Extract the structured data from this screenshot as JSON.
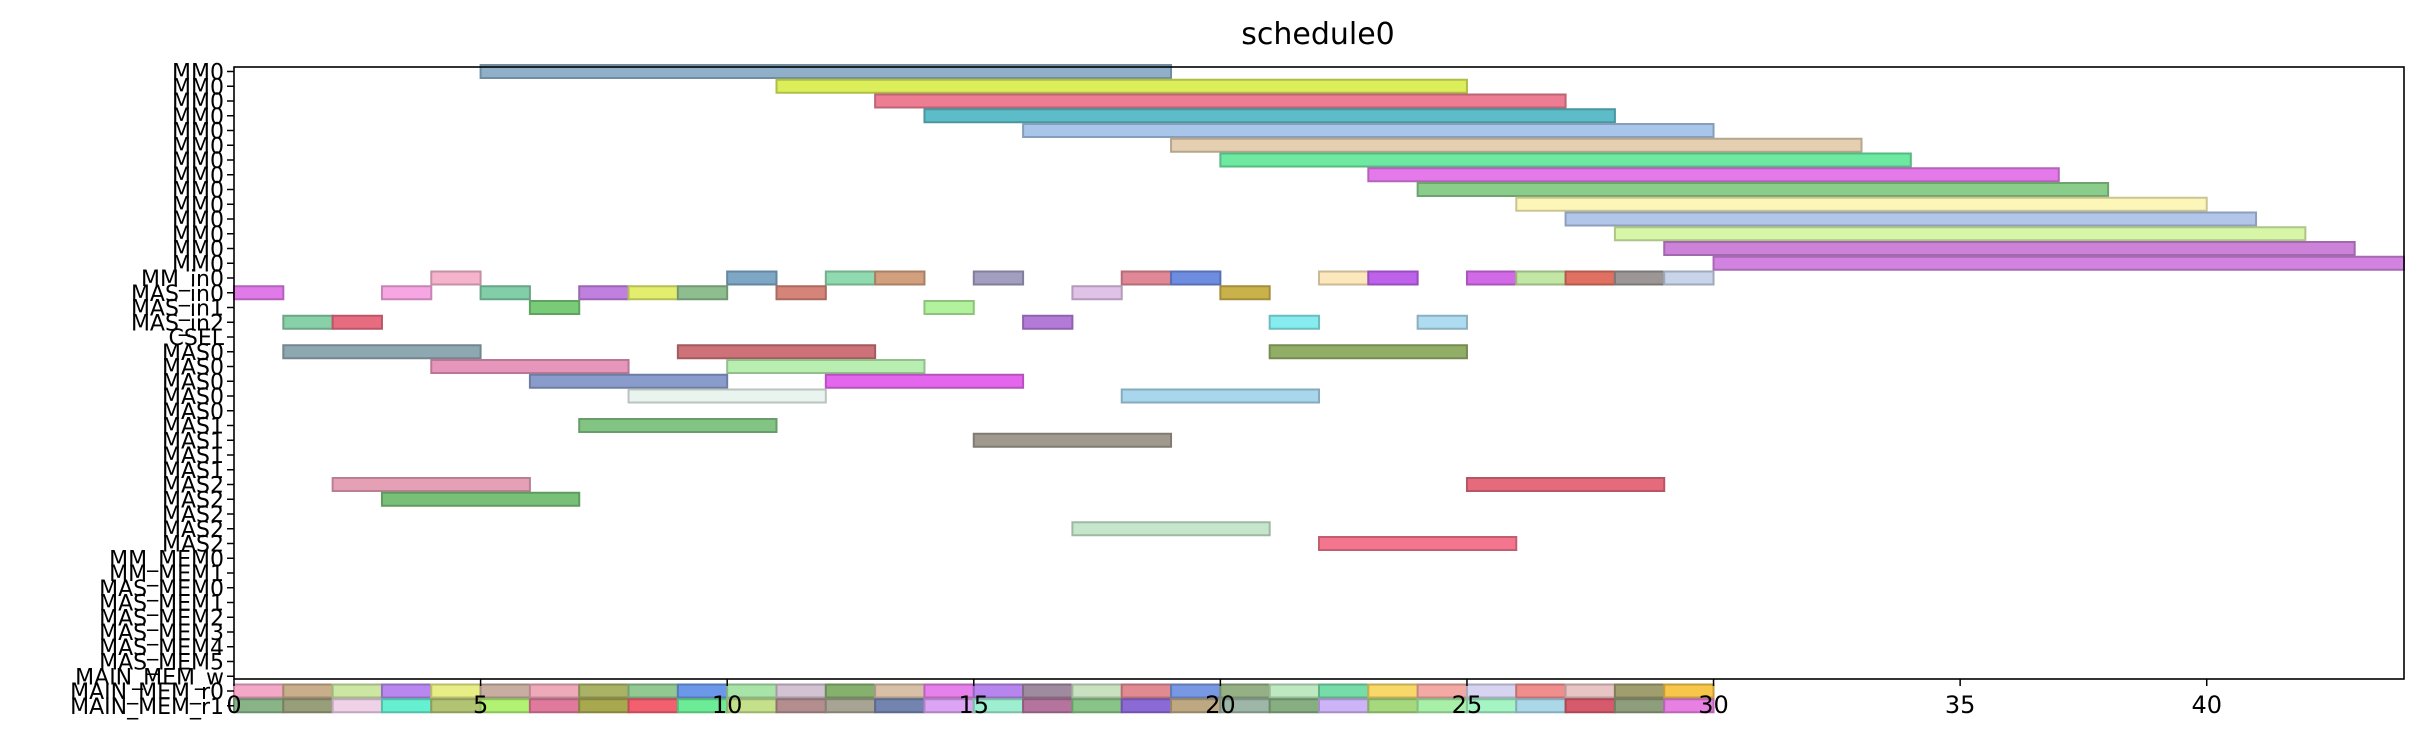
{
  "chart_data": {
    "type": "gantt",
    "title": "schedule0",
    "xlim": [
      0,
      44
    ],
    "x_ticks": [
      0,
      5,
      10,
      15,
      20,
      25,
      30,
      35,
      40
    ],
    "grid": false,
    "rows": [
      "MM0",
      "MM0",
      "MM0",
      "MM0",
      "MM0",
      "MM0",
      "MM0",
      "MM0",
      "MM0",
      "MM0",
      "MM0",
      "MM0",
      "MM0",
      "MM0",
      "MM_in0",
      "MAS_in0",
      "MAS_in1",
      "MAS_in2",
      "CSEL",
      "MAS0",
      "MAS0",
      "MAS0",
      "MAS0",
      "MAS0",
      "MAS1",
      "MAS1",
      "MAS1",
      "MAS1",
      "MAS2",
      "MAS2",
      "MAS2",
      "MAS2",
      "MAS2",
      "MM_MEM0",
      "MM_MEM1",
      "MAS_MEM0",
      "MAS_MEM1",
      "MAS_MEM2",
      "MAS_MEM3",
      "MAS_MEM4",
      "MAS_MEM5",
      "MAIN_MEM_w",
      "MAIN_MEM_r0",
      "MAIN_MEM_r1"
    ],
    "tasks": [
      {
        "row": 0,
        "start": 5,
        "end": 19,
        "color": "#8fb0c8"
      },
      {
        "row": 1,
        "start": 11,
        "end": 25,
        "color": "#dcee5a"
      },
      {
        "row": 2,
        "start": 13,
        "end": 27,
        "color": "#ec7d92"
      },
      {
        "row": 3,
        "start": 14,
        "end": 28,
        "color": "#5cbcc8"
      },
      {
        "row": 4,
        "start": 16,
        "end": 30,
        "color": "#a8c6ea"
      },
      {
        "row": 5,
        "start": 19,
        "end": 33,
        "color": "#e4cfb0"
      },
      {
        "row": 6,
        "start": 20,
        "end": 34,
        "color": "#6de9a2"
      },
      {
        "row": 7,
        "start": 23,
        "end": 37,
        "color": "#e47aea"
      },
      {
        "row": 8,
        "start": 24,
        "end": 38,
        "color": "#8acc8a"
      },
      {
        "row": 9,
        "start": 26,
        "end": 40,
        "color": "#fcf6b8"
      },
      {
        "row": 10,
        "start": 27,
        "end": 41,
        "color": "#b2c6ea"
      },
      {
        "row": 11,
        "start": 28,
        "end": 42,
        "color": "#d8f6a8"
      },
      {
        "row": 12,
        "start": 29,
        "end": 43,
        "color": "#cb82d8"
      },
      {
        "row": 13,
        "start": 30,
        "end": 44,
        "color": "#d282e0"
      },
      {
        "row": 14,
        "start": 4,
        "end": 5,
        "color": "#f6b4cc"
      },
      {
        "row": 14,
        "start": 10,
        "end": 11,
        "color": "#7ea7c6"
      },
      {
        "row": 14,
        "start": 12,
        "end": 13,
        "color": "#90dab0"
      },
      {
        "row": 14,
        "start": 13,
        "end": 14,
        "color": "#d2a07e"
      },
      {
        "row": 14,
        "start": 15,
        "end": 16,
        "color": "#a29ec0"
      },
      {
        "row": 14,
        "start": 18,
        "end": 19,
        "color": "#e08896"
      },
      {
        "row": 14,
        "start": 19,
        "end": 20,
        "color": "#6e8ce0"
      },
      {
        "row": 14,
        "start": 22,
        "end": 23,
        "color": "#fce8bc"
      },
      {
        "row": 14,
        "start": 23,
        "end": 24,
        "color": "#be62ec"
      },
      {
        "row": 14,
        "start": 25,
        "end": 26,
        "color": "#d26ae8"
      },
      {
        "row": 14,
        "start": 26,
        "end": 27,
        "color": "#c2e6a4"
      },
      {
        "row": 14,
        "start": 27,
        "end": 28,
        "color": "#e07062"
      },
      {
        "row": 14,
        "start": 28,
        "end": 29,
        "color": "#9c9696"
      },
      {
        "row": 14,
        "start": 29,
        "end": 30,
        "color": "#c8d4ea"
      },
      {
        "row": 15,
        "start": 0,
        "end": 1,
        "color": "#e07ae8"
      },
      {
        "row": 15,
        "start": 3,
        "end": 4,
        "color": "#f6a6e2"
      },
      {
        "row": 15,
        "start": 5,
        "end": 6,
        "color": "#82cea8"
      },
      {
        "row": 15,
        "start": 7,
        "end": 8,
        "color": "#c080e0"
      },
      {
        "row": 15,
        "start": 8,
        "end": 9,
        "color": "#e4ee6e"
      },
      {
        "row": 15,
        "start": 9,
        "end": 10,
        "color": "#8ebe90"
      },
      {
        "row": 15,
        "start": 11,
        "end": 12,
        "color": "#d48478"
      },
      {
        "row": 15,
        "start": 17,
        "end": 18,
        "color": "#e0c2e8"
      },
      {
        "row": 15,
        "start": 20,
        "end": 21,
        "color": "#cab24a"
      },
      {
        "row": 16,
        "start": 6,
        "end": 7,
        "color": "#78cc78"
      },
      {
        "row": 16,
        "start": 14,
        "end": 15,
        "color": "#b2f29c"
      },
      {
        "row": 17,
        "start": 1,
        "end": 2,
        "color": "#88d0a8"
      },
      {
        "row": 17,
        "start": 2,
        "end": 3,
        "color": "#e86c80"
      },
      {
        "row": 17,
        "start": 16,
        "end": 17,
        "color": "#b47ad8"
      },
      {
        "row": 17,
        "start": 21,
        "end": 22,
        "color": "#86ecf0"
      },
      {
        "row": 17,
        "start": 24,
        "end": 25,
        "color": "#aedcf0"
      },
      {
        "row": 19,
        "start": 1,
        "end": 5,
        "color": "#8ea8b2"
      },
      {
        "row": 19,
        "start": 9,
        "end": 13,
        "color": "#cc7278"
      },
      {
        "row": 19,
        "start": 21,
        "end": 25,
        "color": "#92ae66"
      },
      {
        "row": 20,
        "start": 4,
        "end": 8,
        "color": "#e696ba"
      },
      {
        "row": 20,
        "start": 10,
        "end": 14,
        "color": "#b8eeb0"
      },
      {
        "row": 21,
        "start": 6,
        "end": 10,
        "color": "#8a9ccc"
      },
      {
        "row": 21,
        "start": 12,
        "end": 16,
        "color": "#e466ec"
      },
      {
        "row": 22,
        "start": 8,
        "end": 12,
        "color": "#eaf4ee"
      },
      {
        "row": 22,
        "start": 18,
        "end": 22,
        "color": "#a8d6ec"
      },
      {
        "row": 24,
        "start": 7,
        "end": 11,
        "color": "#82c484"
      },
      {
        "row": 25,
        "start": 15,
        "end": 19,
        "color": "#a09a8e"
      },
      {
        "row": 28,
        "start": 2,
        "end": 6,
        "color": "#e6a0b6"
      },
      {
        "row": 28,
        "start": 25,
        "end": 29,
        "color": "#e46a7c"
      },
      {
        "row": 29,
        "start": 3,
        "end": 7,
        "color": "#78c078"
      },
      {
        "row": 31,
        "start": 17,
        "end": 21,
        "color": "#c6e6cc"
      },
      {
        "row": 32,
        "start": 22,
        "end": 26,
        "color": "#f4768e"
      }
    ],
    "main_mem_r0_colors": [
      "#f4a8c8",
      "#c8ae8a",
      "#cce6a4",
      "#b888f0",
      "#e8ee86",
      "#c8aea0",
      "#eeaab8",
      "#aab266",
      "#92c892",
      "#6c98ea",
      "#a8e4a8",
      "#d2c2d2",
      "#86b06e",
      "#d8c0a8",
      "#e680ea",
      "#b686ee",
      "#a08aa0",
      "#c8e2c0",
      "#e28a92",
      "#7898e4",
      "#96b086",
      "#bde8c0",
      "#76dca8",
      "#f8d868",
      "#f4aaa4",
      "#d6d4f0",
      "#f08e8e",
      "#e8c4c4",
      "#a09e6e",
      "#f8c64a"
    ],
    "main_mem_r1_colors": [
      "#88b488",
      "#989e7a",
      "#f0d2e8",
      "#66f0d2",
      "#b2c474",
      "#b2f272",
      "#e07a9c",
      "#a8a84e",
      "#f26070",
      "#6cec96",
      "#c4e08a",
      "#b48e8e",
      "#a8a494",
      "#7484b0",
      "#dca4f4",
      "#9eeed2",
      "#b4749e",
      "#88c488",
      "#8c6ad6",
      "#bea882",
      "#9eb6a8",
      "#86ae80",
      "#cdb4f6",
      "#a6d87e",
      "#a8f0a8",
      "#a4f4c4",
      "#aad8e8",
      "#d65a6c",
      "#8e9e7c",
      "#e880e4"
    ]
  }
}
